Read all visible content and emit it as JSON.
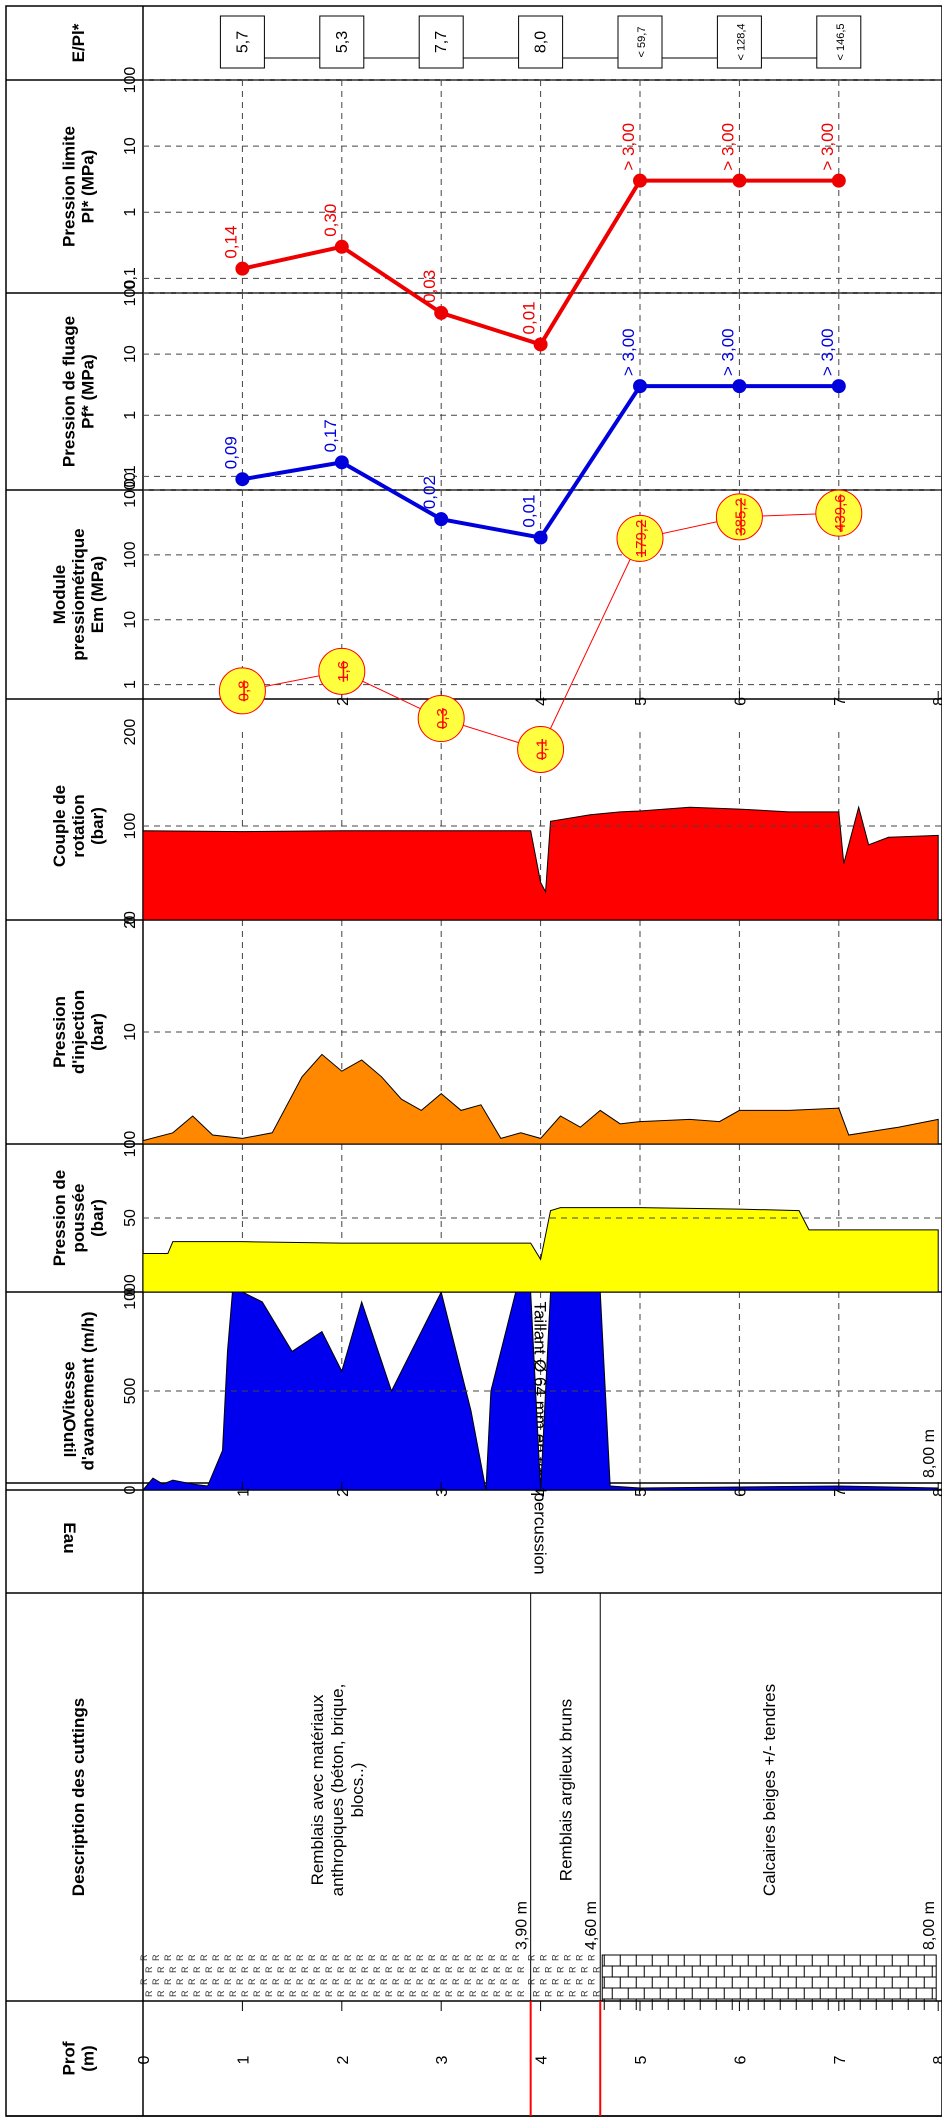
{
  "headers": {
    "prof": "Prof (m)",
    "description": "Description des cuttings",
    "eau": "Eau",
    "outil": "Outil",
    "vitesse": "Vitesse d'avancement (m/h)",
    "poussee": "Pression de poussée (bar)",
    "injection": "Pression d'injection (bar)",
    "couple": "Couple de rotation (bar)",
    "module": "Module pressiométrique Em (MPa)",
    "fluage": "Pression de fluage Pf* (MPa)",
    "limite": "Pression limite Pl* (MPa)",
    "ratio": "E/Pl*"
  },
  "depth_ticks": [
    "0",
    "1",
    "2",
    "3",
    "4",
    "5",
    "6",
    "7",
    "8"
  ],
  "layers": [
    {
      "from_m": 0,
      "to_m": 3.9,
      "description": "Remblais avec matériaux anthropiques (béton, brique, blocs..)",
      "bottom_label": "3,90 m",
      "pattern": "R"
    },
    {
      "from_m": 3.9,
      "to_m": 4.6,
      "description": "Remblais argileux bruns",
      "bottom_label": "4,60 m",
      "pattern": "R"
    },
    {
      "from_m": 4.6,
      "to_m": 8.0,
      "description": "Calcaires beiges +/- tendres",
      "bottom_label": "8,00 m",
      "pattern": "limestone"
    }
  ],
  "outil": {
    "text": "Taillant Ø 64 mm en roto-percussion",
    "end_label": "8,00 m"
  },
  "colors": {
    "vitesse": "#0000ee",
    "poussee": "#ffff00",
    "injection": "#ff8800",
    "couple": "#ff0000",
    "pressiometer_bubble": "#ffff40",
    "pf_series": "#0000dd",
    "pl_series": "#ee0000",
    "water_level_line": "#ff0000"
  },
  "chart_data": [
    {
      "type": "area",
      "name": "Vitesse d'avancement",
      "ylabel": "Vitesse d'avancement (m/h)",
      "range": [
        0,
        1000
      ],
      "ticks": [
        "0",
        "500",
        "1000"
      ],
      "x": [
        0.0,
        0.1,
        0.2,
        0.3,
        0.5,
        0.65,
        0.8,
        0.85,
        0.9,
        1.0,
        1.2,
        1.5,
        1.8,
        2.0,
        2.2,
        2.5,
        2.7,
        3.0,
        3.3,
        3.45,
        3.5,
        3.6,
        3.75,
        3.9,
        4.0,
        4.1,
        4.2,
        4.4,
        4.5,
        4.6,
        4.7,
        5.0,
        6.0,
        7.0,
        8.0
      ],
      "values": [
        0,
        60,
        30,
        50,
        30,
        20,
        200,
        700,
        1000,
        1000,
        950,
        700,
        800,
        600,
        950,
        500,
        700,
        1000,
        400,
        0,
        500,
        700,
        1000,
        1000,
        0,
        1000,
        1000,
        1000,
        1000,
        1000,
        20,
        10,
        15,
        20,
        10
      ]
    },
    {
      "type": "area",
      "name": "Pression de poussée",
      "ylabel": "Pression de poussée (bar)",
      "range": [
        0,
        100
      ],
      "ticks": [
        "0",
        "50",
        "100"
      ],
      "x": [
        0.0,
        0.25,
        0.3,
        1.0,
        2.0,
        3.0,
        3.9,
        4.0,
        4.1,
        4.2,
        5.0,
        6.0,
        6.6,
        6.7,
        7.0,
        7.8,
        8.0
      ],
      "values": [
        26,
        26,
        34,
        34,
        33,
        33,
        33,
        22,
        55,
        57,
        57,
        56,
        55,
        42,
        42,
        42,
        42
      ]
    },
    {
      "type": "area",
      "name": "Pression d'injection",
      "ylabel": "Pression d'injection (bar)",
      "range": [
        0,
        20
      ],
      "ticks": [
        "0",
        "10",
        "20"
      ],
      "x": [
        0.0,
        0.3,
        0.5,
        0.7,
        1.0,
        1.3,
        1.6,
        1.8,
        2.0,
        2.2,
        2.4,
        2.6,
        2.8,
        3.0,
        3.2,
        3.4,
        3.6,
        3.8,
        4.0,
        4.2,
        4.4,
        4.6,
        4.8,
        5.0,
        5.5,
        5.8,
        6.0,
        6.5,
        7.0,
        7.1,
        7.6,
        8.0
      ],
      "values": [
        0.3,
        1.0,
        2.5,
        0.8,
        0.5,
        1.0,
        6.0,
        8.0,
        6.5,
        7.5,
        6.0,
        4.0,
        3.0,
        4.5,
        3.0,
        3.5,
        0.5,
        1.0,
        0.5,
        2.5,
        1.5,
        3.0,
        1.8,
        2.0,
        2.2,
        2.0,
        3.0,
        3.0,
        3.2,
        0.8,
        1.5,
        2.2
      ]
    },
    {
      "type": "area",
      "name": "Couple de rotation",
      "ylabel": "Couple de rotation (bar)",
      "range": [
        0,
        200
      ],
      "ticks": [
        "0",
        "100",
        "200"
      ],
      "x": [
        0.0,
        1.0,
        2.0,
        3.0,
        3.9,
        4.0,
        4.05,
        4.1,
        4.5,
        4.8,
        5.0,
        5.5,
        6.0,
        6.5,
        7.0,
        7.05,
        7.2,
        7.3,
        7.5,
        8.0
      ],
      "values": [
        95,
        94,
        95,
        95,
        95,
        40,
        30,
        105,
        112,
        115,
        116,
        120,
        118,
        115,
        115,
        60,
        120,
        80,
        88,
        90
      ]
    },
    {
      "type": "scatter",
      "name": "Module pressiométrique",
      "ylabel": "Module pressiométrique Em (MPa)",
      "scale": "log",
      "range": [
        0.6,
        1000
      ],
      "ticks": [
        "1",
        "10",
        "100",
        "1000"
      ],
      "depth": [
        1,
        2,
        3,
        4,
        5,
        6,
        7
      ],
      "values": [
        0.8,
        1.6,
        0.3,
        0.1,
        179.2,
        385.2,
        439.6
      ],
      "labels": [
        "0,8",
        "1,6",
        "0,3",
        "0,1",
        "179,2",
        "385,2",
        "439,6"
      ]
    },
    {
      "type": "line",
      "name": "Pression de fluage",
      "ylabel": "Pression de fluage Pf* (MPa)",
      "scale": "log",
      "range": [
        0.06,
        100
      ],
      "ticks": [
        "0,1",
        "1",
        "10",
        "100"
      ],
      "depth": [
        1,
        2,
        3,
        4,
        5,
        6,
        7
      ],
      "values": [
        0.09,
        0.17,
        0.02,
        0.01,
        3.0,
        3.0,
        3.0
      ],
      "labels": [
        "0,09",
        "0,17",
        "0,02",
        "0,01",
        "> 3,00",
        "> 3,00",
        "> 3,00"
      ]
    },
    {
      "type": "line",
      "name": "Pression limite",
      "ylabel": "Pression limite Pl* (MPa)",
      "scale": "log",
      "range": [
        0.06,
        100
      ],
      "ticks": [
        "0,1",
        "1",
        "10",
        "100"
      ],
      "depth": [
        1,
        2,
        3,
        4,
        5,
        6,
        7
      ],
      "values": [
        0.14,
        0.3,
        0.03,
        0.01,
        3.0,
        3.0,
        3.0
      ],
      "labels": [
        "0,14",
        "0,30",
        "0,03",
        "0,01",
        "> 3,00",
        "> 3,00",
        "> 3,00"
      ]
    },
    {
      "type": "table",
      "name": "E/Pl*",
      "depth": [
        1,
        2,
        3,
        4,
        5,
        6,
        7
      ],
      "labels": [
        "5,7",
        "5,3",
        "7,7",
        "8,0",
        "< 59,7",
        "< 128,4",
        "< 146,5"
      ]
    }
  ]
}
